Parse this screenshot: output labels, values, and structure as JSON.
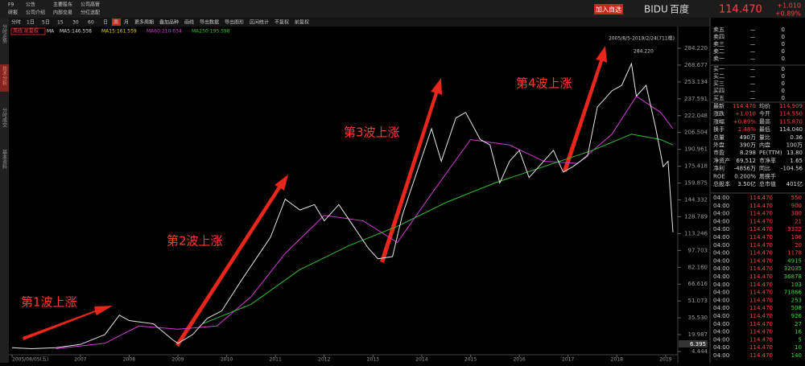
{
  "header": {
    "menu": [
      [
        "F9",
        "公告",
        "主要股东",
        "公司高管"
      ],
      [
        "研报",
        "公司介绍",
        "内部交易",
        "分红送配"
      ]
    ],
    "add_button": "加入自选",
    "symbol": "BIDU",
    "name": "百度",
    "price": "114.470",
    "change": "+1.010",
    "change_pct": "+0.89%"
  },
  "toolbar": [
    "分时",
    "1日",
    "5日",
    "15",
    "30",
    "60",
    "日",
    "周",
    "月",
    "更多周期",
    "叠加品种",
    "画线",
    "导出数据",
    "导出图形",
    "区间统计",
    "不复权",
    "前复权"
  ],
  "side_tabs": [
    "分时走势",
    "技术分析",
    "分时成交",
    "基本资料"
  ],
  "chart_data": {
    "type": "line",
    "period_label": "周线 前复权",
    "range_label": "2005/8/5-2019/2/24(711根)",
    "max_label": "284.220",
    "cursor_label": "6.395",
    "ma_labels": [
      {
        "text": "MA",
        "color": "#dddddd"
      },
      {
        "text": "MA5:146.538",
        "color": "#dddddd"
      },
      {
        "text": "MA15:161.559",
        "color": "#e8d23a"
      },
      {
        "text": "MA60:210.634",
        "color": "#d43ad4"
      },
      {
        "text": "MA250:195.598",
        "color": "#2fbf2f"
      }
    ],
    "annotations": [
      "第1波上涨",
      "第2波上涨",
      "第3波上涨",
      "第4波上涨"
    ],
    "x": [
      2005.6,
      2006.0,
      2006.5,
      2007.0,
      2007.5,
      2007.8,
      2008.0,
      2008.5,
      2008.9,
      2009.0,
      2009.3,
      2009.6,
      2009.9,
      2010.3,
      2010.6,
      2010.9,
      2011.2,
      2011.5,
      2011.8,
      2012.0,
      2012.3,
      2012.6,
      2012.9,
      2013.1,
      2013.4,
      2013.6,
      2013.9,
      2014.2,
      2014.4,
      2014.7,
      2014.9,
      2015.2,
      2015.4,
      2015.6,
      2015.8,
      2016.0,
      2016.2,
      2016.5,
      2016.7,
      2016.9,
      2017.1,
      2017.4,
      2017.6,
      2017.9,
      2018.1,
      2018.3,
      2018.4,
      2018.6,
      2018.8,
      2018.95,
      2019.05,
      2019.15
    ],
    "values": [
      8,
      7,
      8,
      11,
      20,
      38,
      33,
      30,
      15,
      12,
      20,
      35,
      42,
      70,
      90,
      110,
      145,
      135,
      140,
      125,
      140,
      120,
      100,
      90,
      92,
      130,
      170,
      210,
      180,
      220,
      225,
      200,
      195,
      160,
      180,
      190,
      165,
      180,
      190,
      170,
      175,
      185,
      230,
      245,
      250,
      270,
      240,
      250,
      210,
      175,
      180,
      114.47
    ],
    "color": "#e6e6e6",
    "ma_lines": [
      {
        "color": "#d43ad4",
        "x": [
          2006.5,
          2007.5,
          2008.2,
          2009.0,
          2009.8,
          2010.5,
          2011.2,
          2012.0,
          2012.8,
          2013.5,
          2014.2,
          2015.0,
          2015.8,
          2016.5,
          2017.2,
          2017.9,
          2018.4,
          2018.9,
          2019.15
        ],
        "values": [
          7,
          12,
          28,
          25,
          28,
          55,
          95,
          130,
          125,
          105,
          150,
          200,
          195,
          180,
          178,
          205,
          240,
          225,
          210
        ]
      },
      {
        "color": "#2fbf2f",
        "x": [
          2009.5,
          2010.5,
          2011.5,
          2012.5,
          2013.5,
          2014.5,
          2015.5,
          2016.5,
          2017.5,
          2018.3,
          2018.9,
          2019.15
        ],
        "values": [
          30,
          48,
          80,
          102,
          120,
          142,
          160,
          175,
          190,
          205,
          200,
          195
        ]
      }
    ],
    "xlim": [
      2005.55,
      2019.25
    ],
    "xticks": [
      {
        "value": 2005.6,
        "label": "2005/08/05(五)"
      },
      2007,
      2008,
      2009,
      2010,
      2011,
      2012,
      2013,
      2014,
      2015,
      2016,
      2017,
      2018,
      2019
    ],
    "ylim": [
      4.444,
      284.22
    ],
    "yticks": [
      {
        "value": 284.22,
        "label": "284.220"
      },
      {
        "value": 268.677,
        "label": "268.677"
      },
      {
        "value": 253.134,
        "label": "253.134"
      },
      {
        "value": 237.591,
        "label": "237.591"
      },
      {
        "value": 222.048,
        "label": "222.048"
      },
      {
        "value": 206.504,
        "label": "206.504"
      },
      {
        "value": 190.961,
        "label": "190.961"
      },
      {
        "value": 175.418,
        "label": "175.418"
      },
      {
        "value": 159.875,
        "label": "159.875"
      },
      {
        "value": 144.332,
        "label": "144.332"
      },
      {
        "value": 128.789,
        "label": "128.789"
      },
      {
        "value": 113.246,
        "label": "113.246"
      },
      {
        "value": 97.703,
        "label": "97.703"
      },
      {
        "value": 82.16,
        "label": "82.160"
      },
      {
        "value": 66.616,
        "label": "66.616"
      },
      {
        "value": 51.073,
        "label": "51.073"
      },
      {
        "value": 35.53,
        "label": "35.530"
      },
      {
        "value": 19.987,
        "label": "19.987"
      },
      {
        "value": 4.444,
        "label": "4.444"
      }
    ]
  },
  "quote": {
    "book": [
      [
        "卖五",
        "—",
        "0"
      ],
      [
        "卖四",
        "—",
        "0"
      ],
      [
        "卖三",
        "—",
        "0"
      ],
      [
        "卖二",
        "—",
        "0"
      ],
      [
        "卖一",
        "—",
        "0"
      ],
      [
        "买一",
        "—",
        "0"
      ],
      [
        "买二",
        "—",
        "0"
      ],
      [
        "买三",
        "—",
        "0"
      ],
      [
        "买四",
        "—",
        "0"
      ],
      [
        "买五",
        "—",
        "0"
      ]
    ],
    "stats": [
      [
        "最新",
        "114.470",
        "均价",
        "114.909"
      ],
      [
        "涨跌",
        "+1.010",
        "今开",
        "114.550"
      ],
      [
        "涨幅",
        "+0.89%",
        "最高",
        "115.870"
      ],
      [
        "换手",
        "1.48%",
        "最低",
        "114.040"
      ],
      [
        "总量",
        "490万",
        "量比",
        "0.36"
      ],
      [
        "外盘",
        "390万",
        "内盘",
        "100万"
      ],
      [
        "市盈",
        "8.298",
        "PE(TTM)",
        "13.80"
      ],
      [
        "净资产",
        "69.512",
        "市净率",
        "1.65"
      ],
      [
        "净利",
        "-4856万",
        "同比",
        "-104.56"
      ],
      [
        "ROE",
        "0.200%",
        "周换手",
        ""
      ],
      [
        "总股本",
        "3.50亿",
        "总市值",
        "401亿"
      ]
    ],
    "trades": [
      [
        "04:00",
        "114.470",
        "550"
      ],
      [
        "04:00",
        "114.470",
        "900"
      ],
      [
        "04:00",
        "114.470",
        "300"
      ],
      [
        "04:00",
        "114.470",
        "21"
      ],
      [
        "04:00",
        "114.470",
        "3322"
      ],
      [
        "04:00",
        "114.470",
        "106"
      ],
      [
        "04:00",
        "114.470",
        "20"
      ],
      [
        "04:00",
        "114.470",
        "1178"
      ],
      [
        "04:00",
        "114.470",
        "4915"
      ],
      [
        "04:00",
        "114.470",
        "32035"
      ],
      [
        "04:00",
        "114.470",
        "36878"
      ],
      [
        "04:00",
        "114.470",
        "103"
      ],
      [
        "04:00",
        "114.470",
        "71866"
      ],
      [
        "04:00",
        "114.470",
        "253"
      ],
      [
        "04:00",
        "114.470",
        "508"
      ],
      [
        "04:00",
        "114.470",
        "926"
      ],
      [
        "04:00",
        "114.470",
        "27"
      ],
      [
        "04:00",
        "114.470",
        "16"
      ],
      [
        "04:00",
        "114.470",
        "5"
      ],
      [
        "04:00",
        "114.470",
        "10"
      ],
      [
        "04:00",
        "114.470",
        "140"
      ]
    ],
    "trade_colors": [
      "#ff4040",
      "#ff4040",
      "#ff4040",
      "#ff4040",
      "#ff4040",
      "#ff4040",
      "#ff4040",
      "#ff4040",
      "#3ad83a",
      "#3ad83a",
      "#3ad83a",
      "#3ad83a",
      "#3ad83a",
      "#3ad83a",
      "#3ad83a",
      "#3ad83a",
      "#3ad83a",
      "#3ad83a",
      "#3ad83a",
      "#3ad83a",
      "#3ad83a"
    ]
  }
}
